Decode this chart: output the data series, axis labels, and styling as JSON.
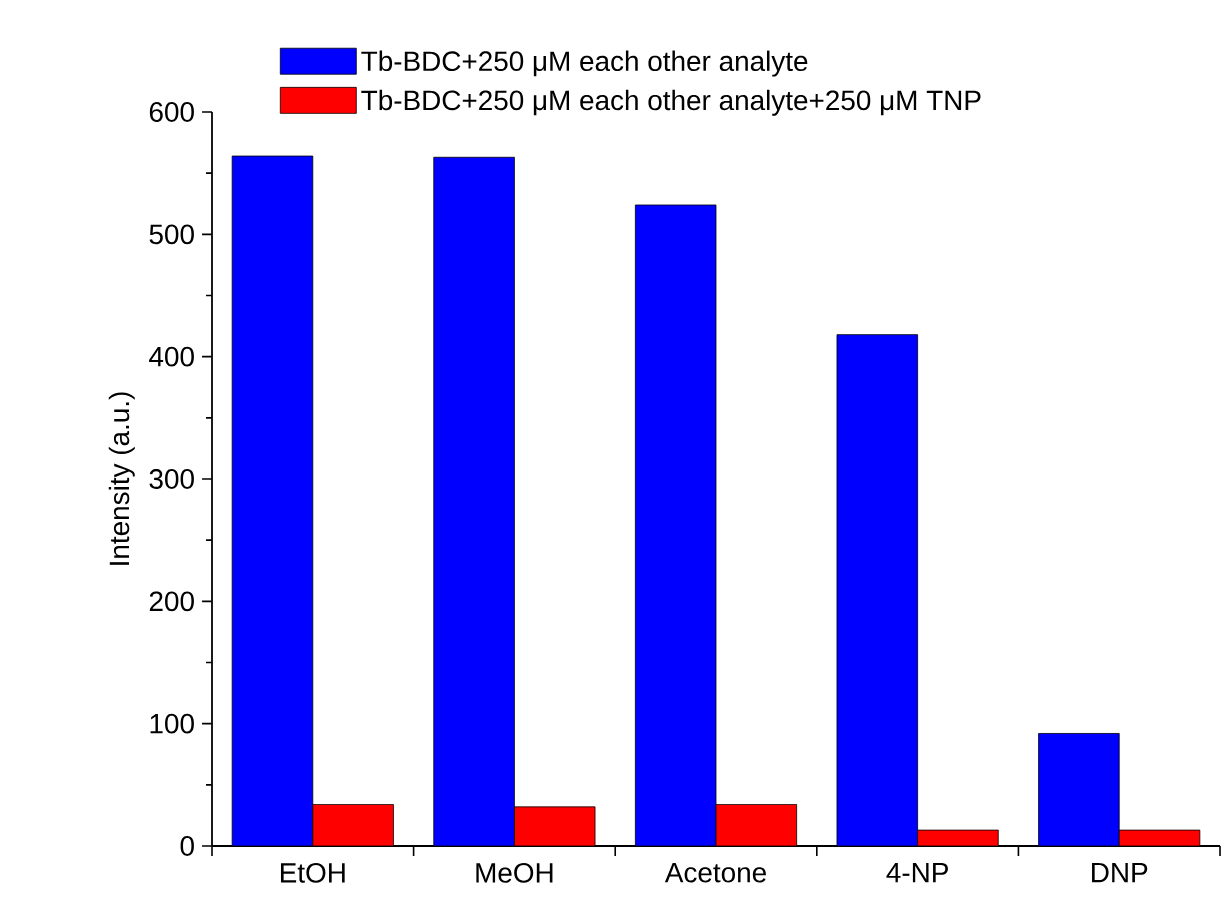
{
  "chart_data": {
    "type": "bar",
    "ylabel": "Intensity (a.u.)",
    "categories": [
      "EtOH",
      "MeOH",
      "Acetone",
      "4-NP",
      "DNP"
    ],
    "series": [
      {
        "name": "Tb-BDC+250 μM each other analyte",
        "color": "#0000ff",
        "values": [
          564,
          563,
          524,
          418,
          92
        ]
      },
      {
        "name": "Tb-BDC+250 μM each other analyte+250 μM TNP",
        "color": "#ff0000",
        "values": [
          34,
          32,
          34,
          13,
          13
        ]
      }
    ],
    "ylim": [
      0,
      600
    ],
    "yticks": [
      0,
      100,
      200,
      300,
      400,
      500,
      600
    ],
    "grid": false,
    "legend": "top"
  }
}
